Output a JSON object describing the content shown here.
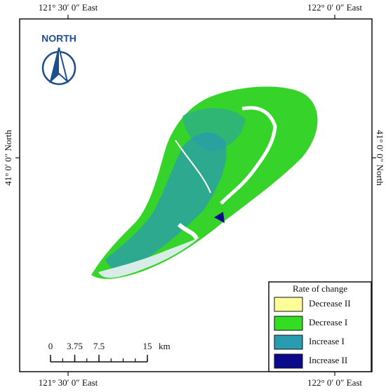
{
  "map": {
    "graticule": {
      "top": [
        "121° 30′ 0″ East",
        "122° 0′ 0″ East"
      ],
      "bottom": [
        "121° 30′ 0″ East",
        "122° 0′ 0″ East"
      ],
      "left": "41° 0′ 0″ North",
      "right": "41° 0′ 0″ North"
    },
    "north_arrow": "NORTH",
    "legend": {
      "title": "Rate of change",
      "items": [
        {
          "label": "Decrease II",
          "color": "#ffff99"
        },
        {
          "label": "Decrease I",
          "color": "#33dd22"
        },
        {
          "label": "Increase I",
          "color": "#2a9bb0"
        },
        {
          "label": "Increase II",
          "color": "#0a0a8a"
        }
      ]
    },
    "scale_bar": {
      "ticks": [
        "0",
        "3.75",
        "7.5",
        "15"
      ],
      "unit": "km"
    }
  }
}
